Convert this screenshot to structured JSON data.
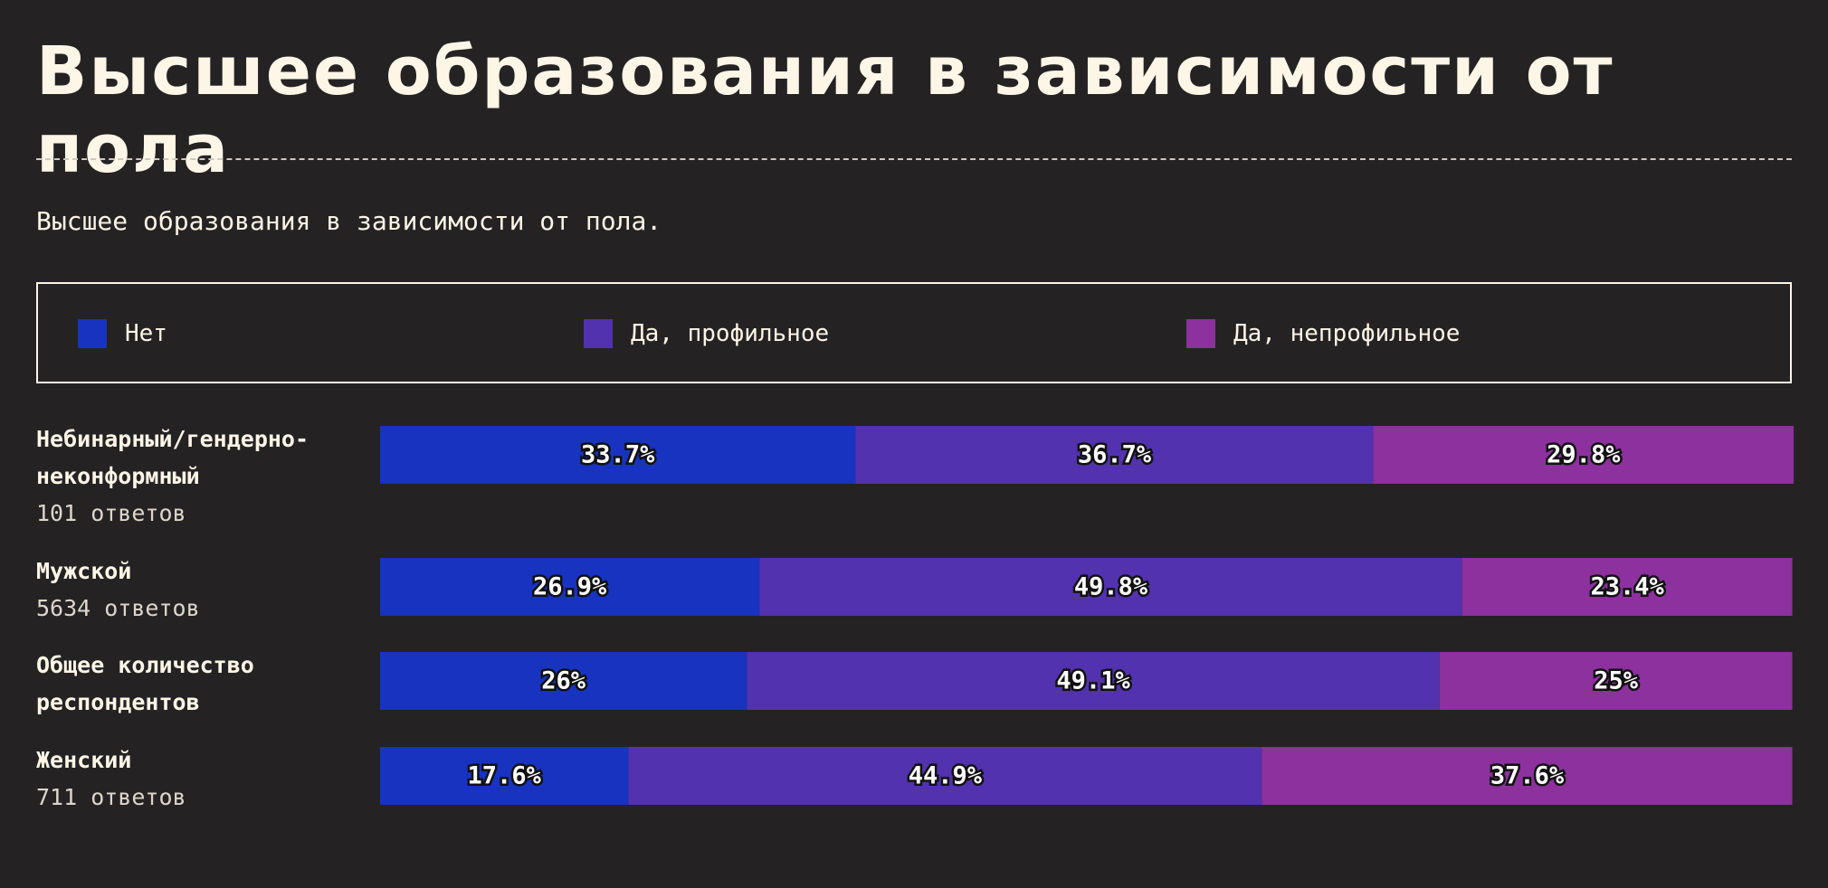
{
  "chart_data": {
    "type": "stacked-bar-horizontal",
    "title": "Высшее образования в зависимости от пола",
    "subtitle": "Высшее образования в зависимости от пола.",
    "categories": [
      "Небинарный/гендерно-неконформный",
      "Мужской",
      "Общее количество респондентов",
      "Женский"
    ],
    "category_notes": [
      "101 ответов",
      "5634 ответов",
      null,
      "711 ответов"
    ],
    "xlim": [
      0,
      100
    ],
    "series": [
      {
        "name": "Нет",
        "color": "#1733c0",
        "values": [
          33.7,
          26.9,
          26,
          17.6
        ],
        "value_labels": [
          "33.7%",
          "26.9%",
          "26%",
          "17.6%"
        ]
      },
      {
        "name": "Да, профильное",
        "color": "#5232ae",
        "values": [
          36.7,
          49.8,
          49.1,
          44.9
        ],
        "value_labels": [
          "36.7%",
          "49.8%",
          "49.1%",
          "44.9%"
        ]
      },
      {
        "name": "Да, непрофильное",
        "color": "#8c319e",
        "values": [
          29.8,
          23.4,
          25,
          37.6
        ],
        "value_labels": [
          "29.8%",
          "23.4%",
          "25%",
          "37.6%"
        ]
      }
    ]
  }
}
